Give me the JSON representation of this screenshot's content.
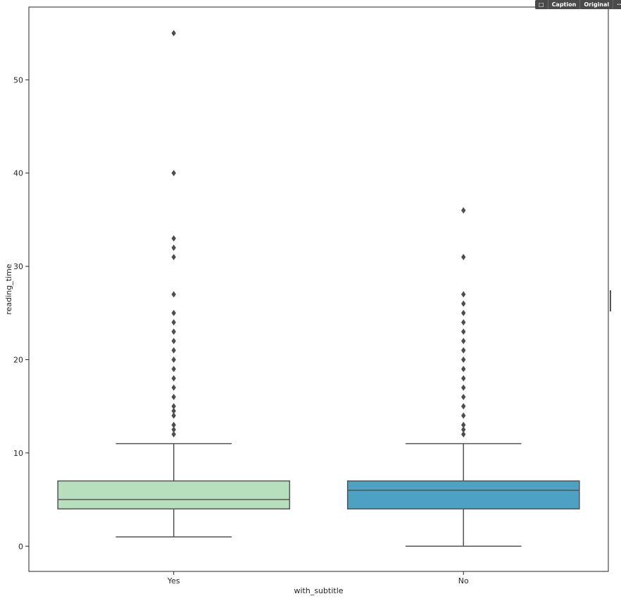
{
  "toolbar": {
    "comment_icon": "comment-icon",
    "caption_label": "Caption",
    "original_label": "Original",
    "more_label": "···"
  },
  "chart_data": {
    "type": "box",
    "xlabel": "with_subtitle",
    "ylabel": "reading_time",
    "categories": [
      "Yes",
      "No"
    ],
    "ylim": [
      -2.7,
      57.8
    ],
    "yticks": [
      0,
      10,
      20,
      30,
      40,
      50
    ],
    "grid": false,
    "boxes": [
      {
        "category": "Yes",
        "color": "#b7dfbd",
        "whisker_low": 1,
        "q1": 4,
        "median": 5,
        "q3": 7,
        "whisker_high": 11,
        "outliers": [
          12,
          12.5,
          13,
          14,
          14.5,
          15,
          16,
          17,
          18,
          19,
          20,
          21,
          22,
          23,
          24,
          25,
          27,
          31,
          32,
          33,
          40,
          55
        ]
      },
      {
        "category": "No",
        "color": "#4fa1c3",
        "whisker_low": 0,
        "q1": 4,
        "median": 6,
        "q3": 7,
        "whisker_high": 11,
        "outliers": [
          12,
          12.5,
          13,
          14,
          15,
          16,
          17,
          18,
          19,
          20,
          21,
          22,
          23,
          24,
          25,
          26,
          27,
          31,
          36
        ]
      }
    ]
  }
}
